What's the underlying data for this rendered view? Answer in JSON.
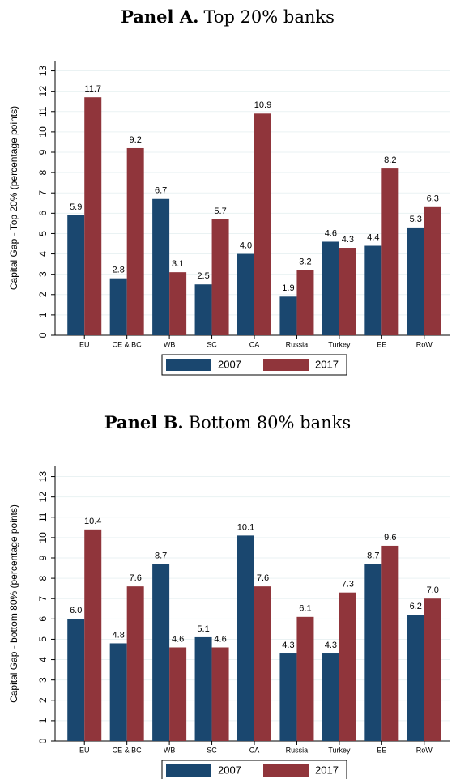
{
  "chart_data": [
    {
      "type": "bar",
      "title_bold": "Panel A.",
      "title": "Top 20% banks",
      "y_label": "Capital Gap - Top 20% (percentage points)",
      "categories": [
        "EU",
        "CE & BC",
        "WB",
        "SC",
        "CA",
        "Russia",
        "Turkey",
        "EE",
        "RoW"
      ],
      "series": [
        {
          "name": "2007",
          "color": "#1a476f",
          "values": [
            5.9,
            2.8,
            6.7,
            2.5,
            4.0,
            1.9,
            4.6,
            4.4,
            5.3
          ],
          "value_labels": [
            "5.9",
            "2.8",
            "6.7",
            "2.5",
            "4.0",
            "1.9",
            "4.6",
            "4.4",
            "5.3"
          ]
        },
        {
          "name": "2017",
          "color": "#90353b",
          "values": [
            11.7,
            9.2,
            3.1,
            5.7,
            10.9,
            3.2,
            4.3,
            8.2,
            6.3
          ],
          "value_labels": [
            "11.7",
            "9.2",
            "3.1",
            "5.7",
            "10.9",
            "3.2",
            "4.3",
            "8.2",
            "6.3"
          ]
        }
      ],
      "ylim": [
        0,
        13.5
      ],
      "yticks": [
        0,
        1,
        2,
        3,
        4,
        5,
        6,
        7,
        8,
        9,
        10,
        11,
        12,
        13
      ],
      "grid": true,
      "legend": "bottom"
    },
    {
      "type": "bar",
      "title_bold": "Panel B.",
      "title": "Bottom 80% banks",
      "y_label": "Capital Gap - bottom 80% (percentage points)",
      "categories": [
        "EU",
        "CE & BC",
        "WB",
        "SC",
        "CA",
        "Russia",
        "Turkey",
        "EE",
        "RoW"
      ],
      "series": [
        {
          "name": "2007",
          "color": "#1a476f",
          "values": [
            6.0,
            4.8,
            8.7,
            5.1,
            10.1,
            4.3,
            4.3,
            8.7,
            6.2
          ],
          "value_labels": [
            "6.0",
            "4.8",
            "8.7",
            "5.1",
            "10.1",
            "4.3",
            "4.3",
            "8.7",
            "6.2"
          ]
        },
        {
          "name": "2017",
          "color": "#90353b",
          "values": [
            10.4,
            7.6,
            4.6,
            4.6,
            7.6,
            6.1,
            7.3,
            9.6,
            7.0
          ],
          "value_labels": [
            "10.4",
            "7.6",
            "4.6",
            "4.6",
            "7.6",
            "6.1",
            "7.3",
            "9.6",
            "7.0"
          ]
        }
      ],
      "ylim": [
        0,
        13.5
      ],
      "yticks": [
        0,
        1,
        2,
        3,
        4,
        5,
        6,
        7,
        8,
        9,
        10,
        11,
        12,
        13
      ],
      "grid": true,
      "legend": "bottom"
    }
  ]
}
